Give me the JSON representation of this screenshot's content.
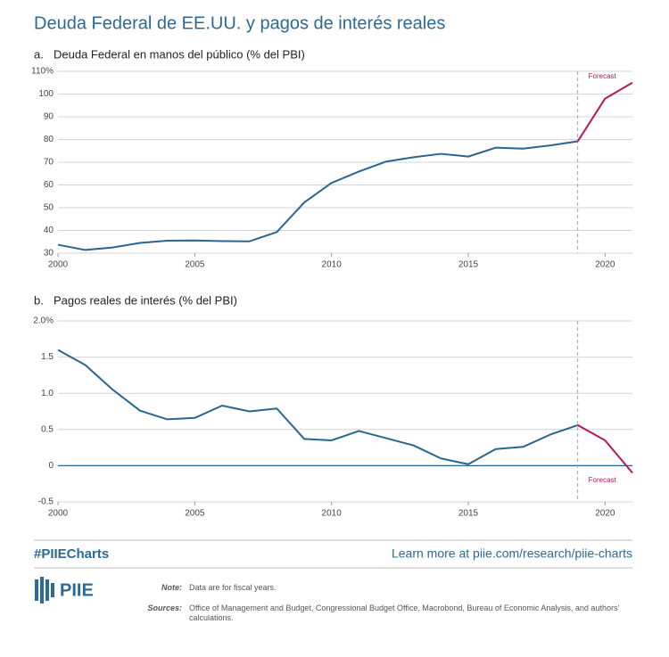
{
  "title": "Deuda Federal de EE.UU. y pagos de interés reales",
  "chart_data": [
    {
      "type": "line",
      "panel": "a.",
      "title": "Deuda Federal en manos del público (% del PBI)",
      "x": [
        2000,
        2001,
        2002,
        2003,
        2004,
        2005,
        2006,
        2007,
        2008,
        2009,
        2010,
        2011,
        2012,
        2013,
        2014,
        2015,
        2016,
        2017,
        2018,
        2019,
        2020,
        2021
      ],
      "series": [
        {
          "color": "#2a6590",
          "values": [
            33.7,
            31.4,
            32.5,
            34.5,
            35.5,
            35.6,
            35.3,
            35.2,
            39.3,
            52.3,
            60.9,
            65.9,
            70.3,
            72.2,
            73.7,
            72.5,
            76.4,
            76.0,
            77.4,
            79.2,
            null,
            null
          ]
        },
        {
          "color": "#b5175c",
          "values": [
            null,
            null,
            null,
            null,
            null,
            null,
            null,
            null,
            null,
            null,
            null,
            null,
            null,
            null,
            null,
            null,
            null,
            null,
            null,
            79.2,
            98,
            105
          ]
        }
      ],
      "xlim": [
        2000,
        2021
      ],
      "xticks": [
        2000,
        2005,
        2010,
        2015,
        2020
      ],
      "ylim": [
        30,
        110
      ],
      "yticks": [
        30,
        40,
        50,
        60,
        70,
        80,
        90,
        100,
        {
          "value": 110,
          "label": "110%"
        }
      ],
      "grid": true,
      "zero_line": false,
      "forecast_start": 2019,
      "forecast_label": "Forecast",
      "forecast_label_position": "top"
    },
    {
      "type": "line",
      "panel": "b.",
      "title": "Pagos reales de interés (% del PBI)",
      "x": [
        2000,
        2001,
        2002,
        2003,
        2004,
        2005,
        2006,
        2007,
        2008,
        2009,
        2010,
        2011,
        2012,
        2013,
        2014,
        2015,
        2016,
        2017,
        2018,
        2019,
        2020,
        2021
      ],
      "series": [
        {
          "color": "#2a6590",
          "values": [
            1.6,
            1.39,
            1.05,
            0.76,
            0.64,
            0.66,
            0.83,
            0.75,
            0.79,
            0.37,
            0.35,
            0.48,
            0.38,
            0.28,
            0.1,
            0.02,
            0.23,
            0.26,
            0.43,
            0.56,
            null,
            null
          ]
        },
        {
          "color": "#b5175c",
          "values": [
            null,
            null,
            null,
            null,
            null,
            null,
            null,
            null,
            null,
            null,
            null,
            null,
            null,
            null,
            null,
            null,
            null,
            null,
            null,
            0.56,
            0.35,
            -0.1
          ]
        }
      ],
      "xlim": [
        2000,
        2021
      ],
      "xticks": [
        2000,
        2005,
        2010,
        2015,
        2020
      ],
      "ylim": [
        -0.5,
        2.0
      ],
      "yticks": [
        -0.5,
        0,
        0.5,
        {
          "value": 1.0,
          "label": "1.0"
        },
        1.5,
        {
          "value": 2.0,
          "label": "2.0%"
        }
      ],
      "grid": true,
      "zero_line": true,
      "forecast_start": 2019,
      "forecast_label": "Forecast",
      "forecast_label_position": "bottom"
    }
  ],
  "footer": {
    "hashtag": "#PIIECharts",
    "link": "Learn more at piie.com/research/piie-charts",
    "logo": "PIIE",
    "note_label": "Note:",
    "note": "Data are for fiscal years.",
    "sources_label": "Sources:",
    "sources": "Office of Management and Budget, Congressional Budget Office, Macrobond, Bureau of Economic Analysis, and authors’ calculations."
  }
}
